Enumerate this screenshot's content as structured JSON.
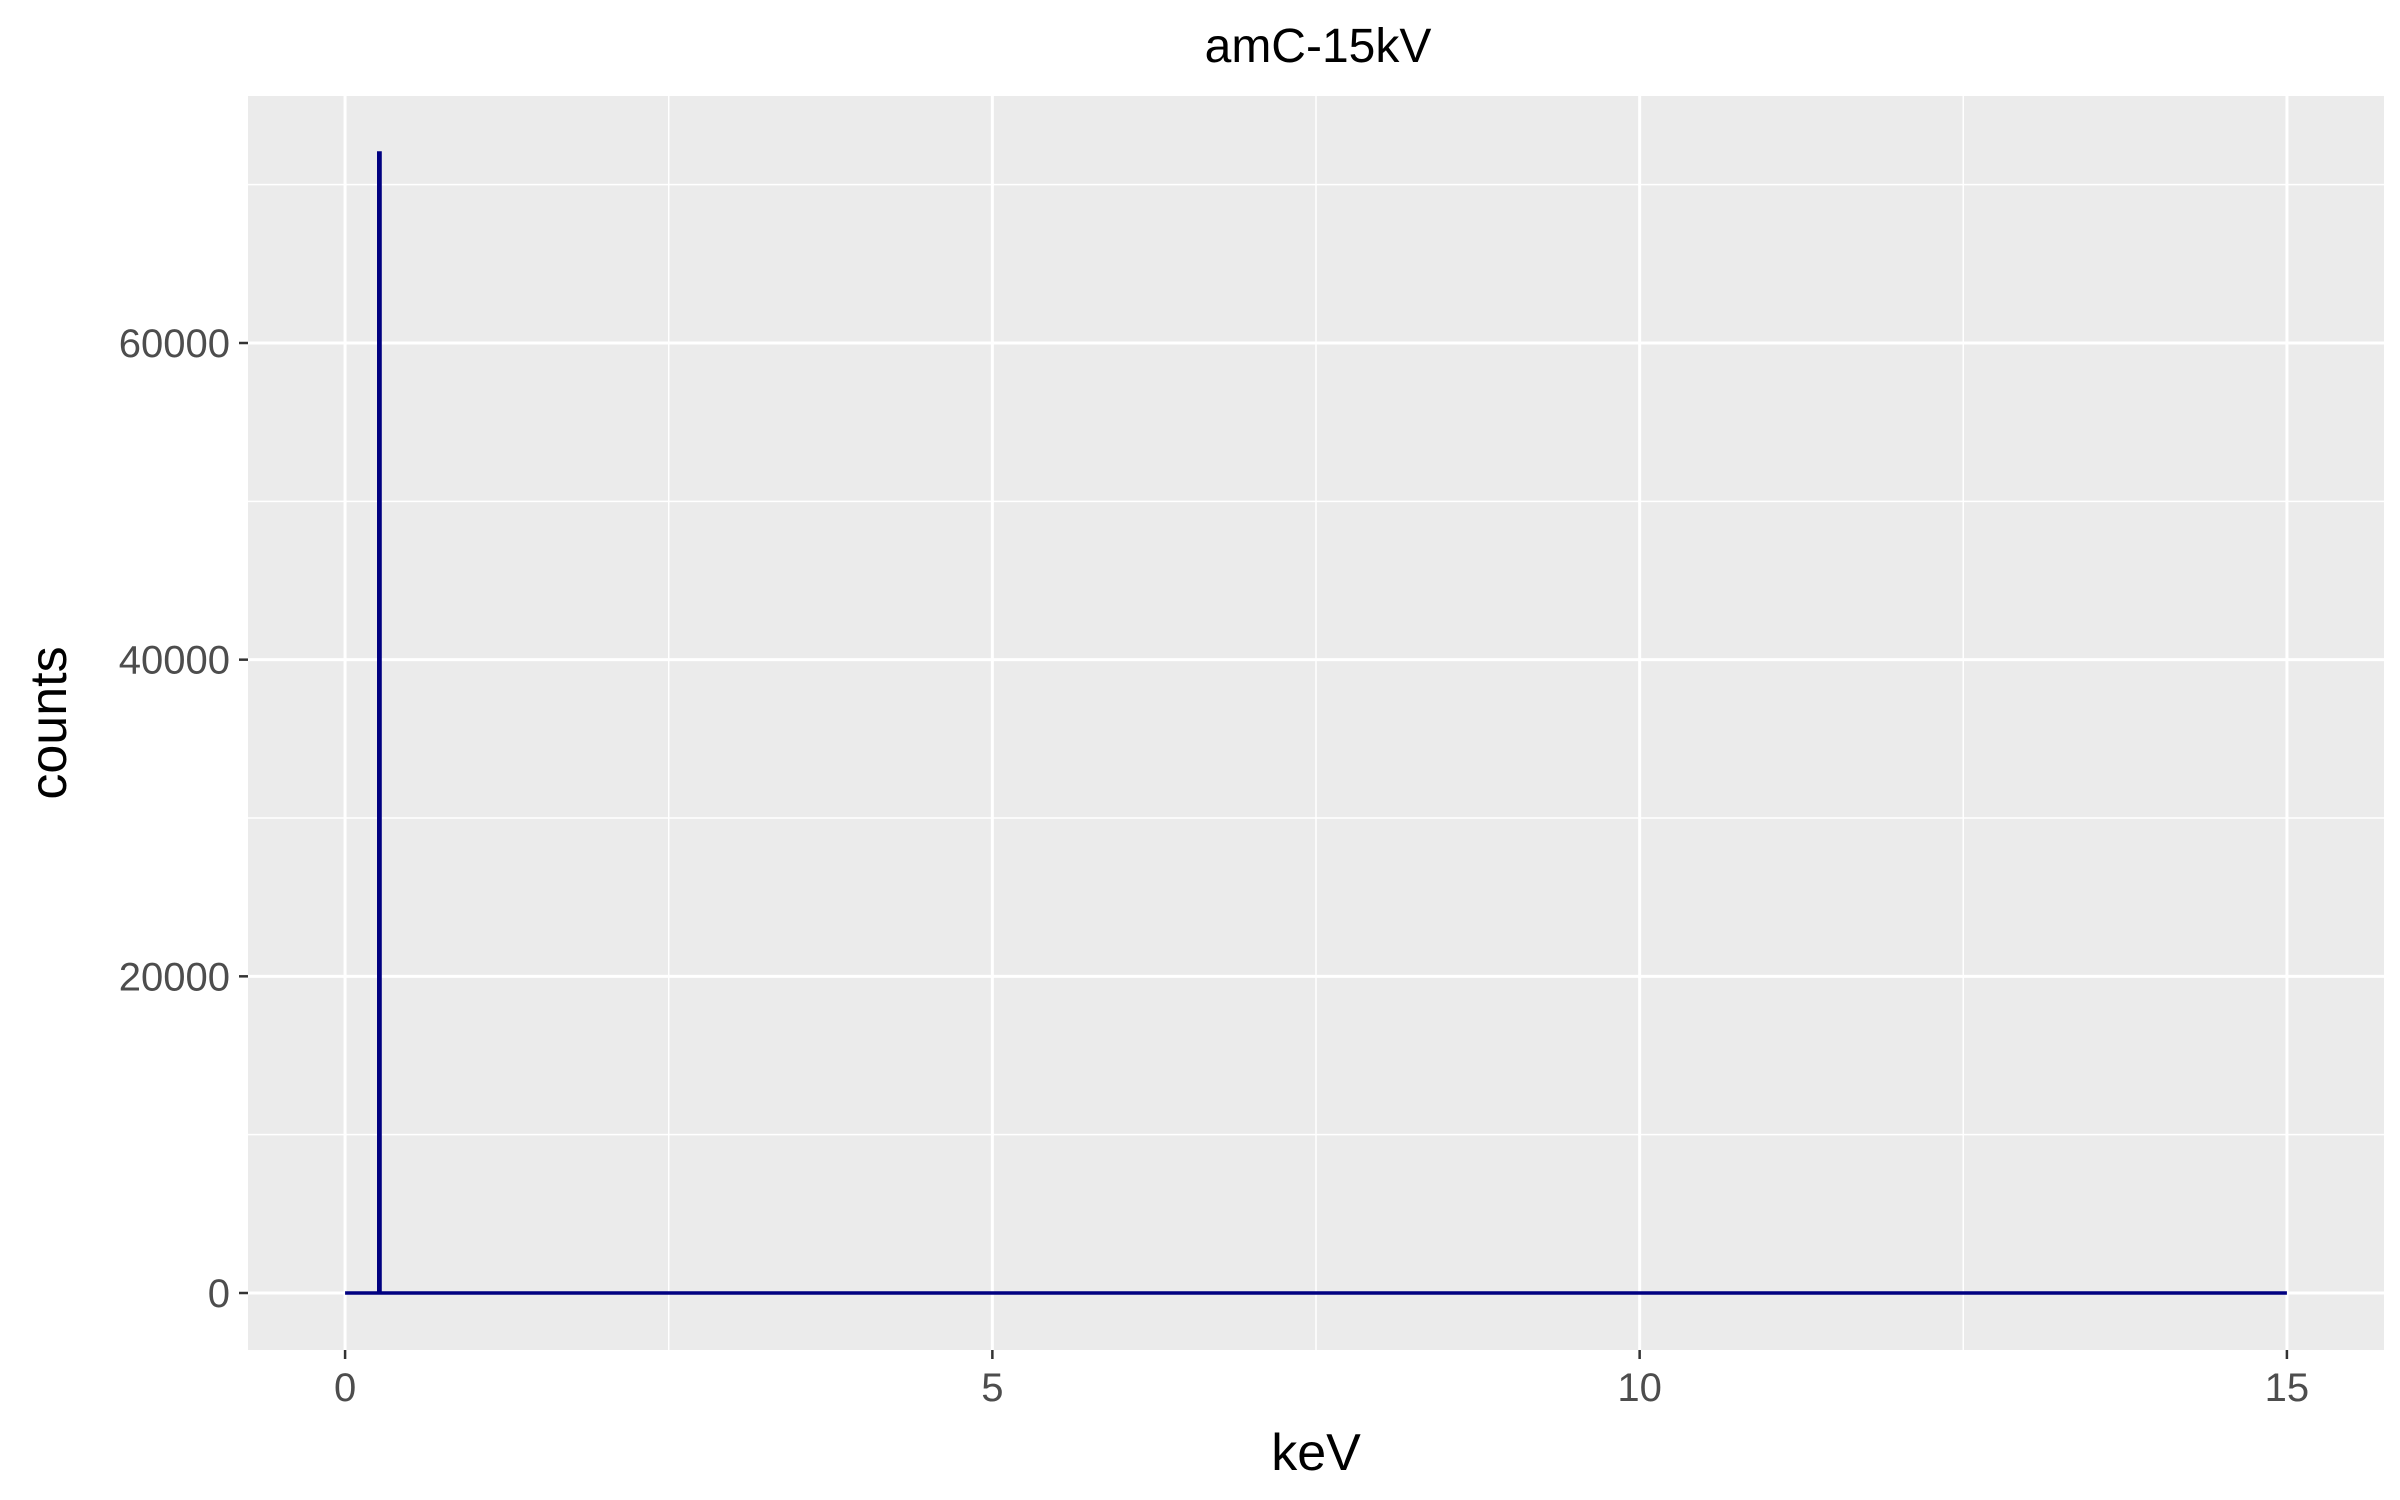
{
  "chart_data": {
    "type": "line",
    "title": "amC-15kV",
    "xlabel": "keV",
    "ylabel": "counts",
    "xlim": [
      -0.75,
      15.75
    ],
    "ylim": [
      -3600,
      75600
    ],
    "x_ticks": [
      0,
      5,
      10,
      15
    ],
    "x_tick_labels": [
      "0",
      "5",
      "10",
      "15"
    ],
    "y_ticks": [
      0,
      20000,
      40000,
      60000
    ],
    "y_tick_labels": [
      "0",
      "20000",
      "40000",
      "60000"
    ],
    "grid": true,
    "legend": "none",
    "series": [
      {
        "color": "#000080",
        "x": [
          0.0,
          0.25,
          0.26,
          0.26,
          0.27,
          0.27,
          0.28,
          15.0
        ],
        "y": [
          0,
          0,
          0,
          72000,
          72000,
          0,
          0,
          0
        ]
      }
    ]
  },
  "colors": {
    "panel_background": "#ebebeb",
    "grid": "#ffffff",
    "line": "#000080",
    "tick": "#333333"
  }
}
